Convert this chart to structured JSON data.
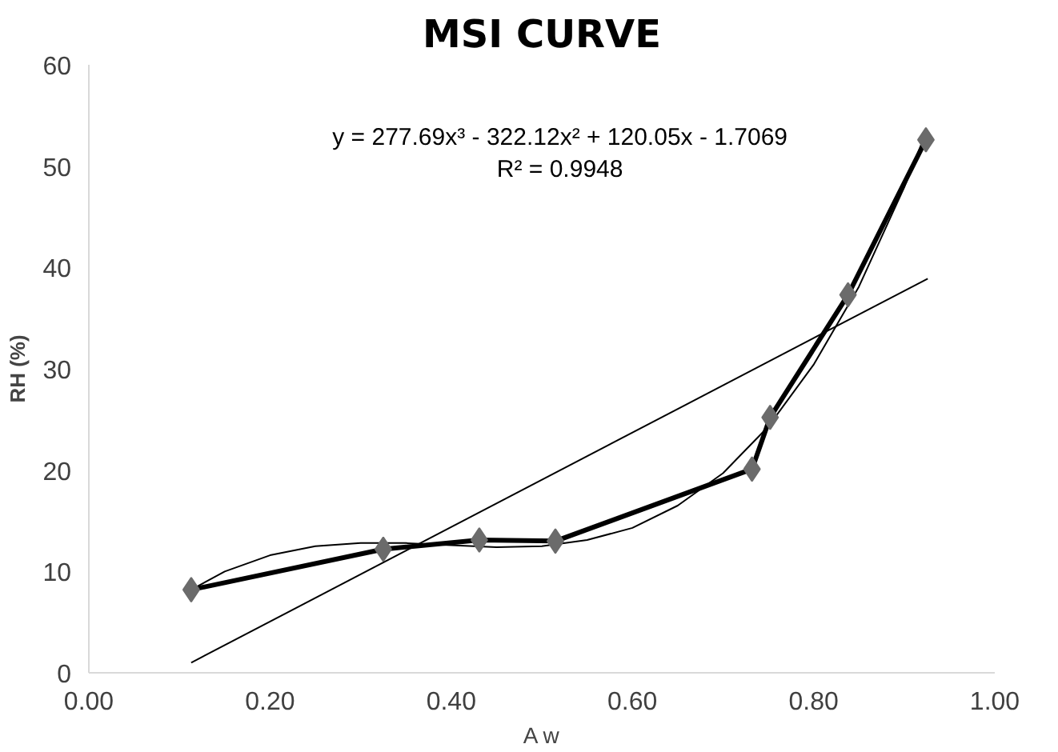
{
  "chart_data": {
    "type": "line",
    "title": "MSI CURVE",
    "xlabel": "A w",
    "ylabel": "RH (%)",
    "xlim": [
      0,
      1
    ],
    "xticks": [
      {
        "value": 0,
        "label": "0.00"
      },
      {
        "value": 0.2,
        "label": "0.20"
      },
      {
        "value": 0.4,
        "label": "0.40"
      },
      {
        "value": 0.6,
        "label": "0.60"
      },
      {
        "value": 0.8,
        "label": "0.80"
      },
      {
        "value": 1,
        "label": "1.00"
      }
    ],
    "ylim": [
      0,
      60
    ],
    "yticks": [
      0,
      10,
      20,
      30,
      40,
      50,
      60
    ],
    "grid": false,
    "series": [
      {
        "color": "#000000",
        "x": [
          0.113,
          0.15,
          0.2,
          0.25,
          0.3,
          0.35,
          0.4,
          0.45,
          0.5,
          0.55,
          0.6,
          0.65,
          0.7,
          0.75,
          0.8,
          0.85,
          0.9,
          0.924
        ],
        "values": [
          8.2,
          10.0,
          11.6,
          12.5,
          12.8,
          12.8,
          12.6,
          12.4,
          12.5,
          13.1,
          14.3,
          16.5,
          19.7,
          24.3,
          30.4,
          38.1,
          47.9,
          53.3
        ]
      },
      {
        "color": "#000000",
        "x": [
          0.113,
          0.926
        ],
        "values": [
          1.0,
          38.9
        ]
      },
      {
        "color": "#000000",
        "marker": "diamond",
        "x": [
          0.113,
          0.325,
          0.431,
          0.515,
          0.732,
          0.752,
          0.838,
          0.924
        ],
        "values": [
          8.2,
          12.2,
          13.1,
          13.0,
          20.1,
          25.2,
          37.3,
          52.6
        ]
      }
    ],
    "annotations": [
      "y = 277.69x³ - 322.12x² + 120.05x - 1.7069",
      "R² = 0.9948"
    ]
  }
}
